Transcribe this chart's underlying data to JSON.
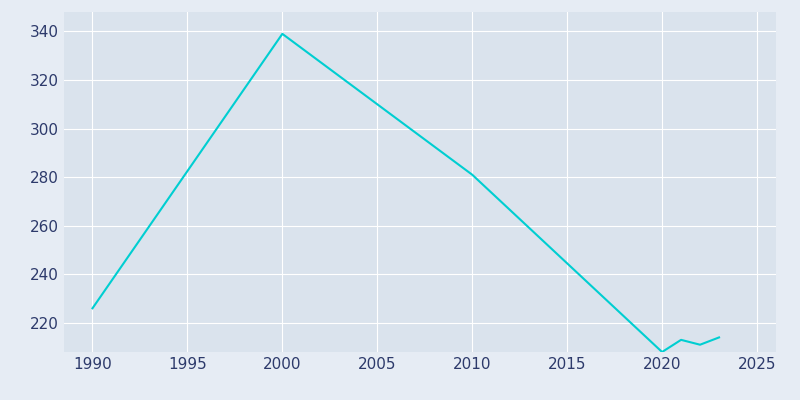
{
  "years": [
    1990,
    2000,
    2010,
    2020,
    2021,
    2022,
    2023
  ],
  "population": [
    226,
    339,
    281,
    208,
    213,
    211,
    214
  ],
  "line_color": "#00CED1",
  "bg_color": "#E6ECF4",
  "plot_bg_color": "#DAE3ED",
  "grid_color": "#FFFFFF",
  "tick_color": "#2D3A6B",
  "xlim": [
    1988.5,
    2026
  ],
  "ylim": [
    208,
    348
  ],
  "xticks": [
    1990,
    1995,
    2000,
    2005,
    2010,
    2015,
    2020,
    2025
  ],
  "yticks": [
    220,
    240,
    260,
    280,
    300,
    320,
    340
  ],
  "linewidth": 1.5,
  "tick_fontsize": 11
}
